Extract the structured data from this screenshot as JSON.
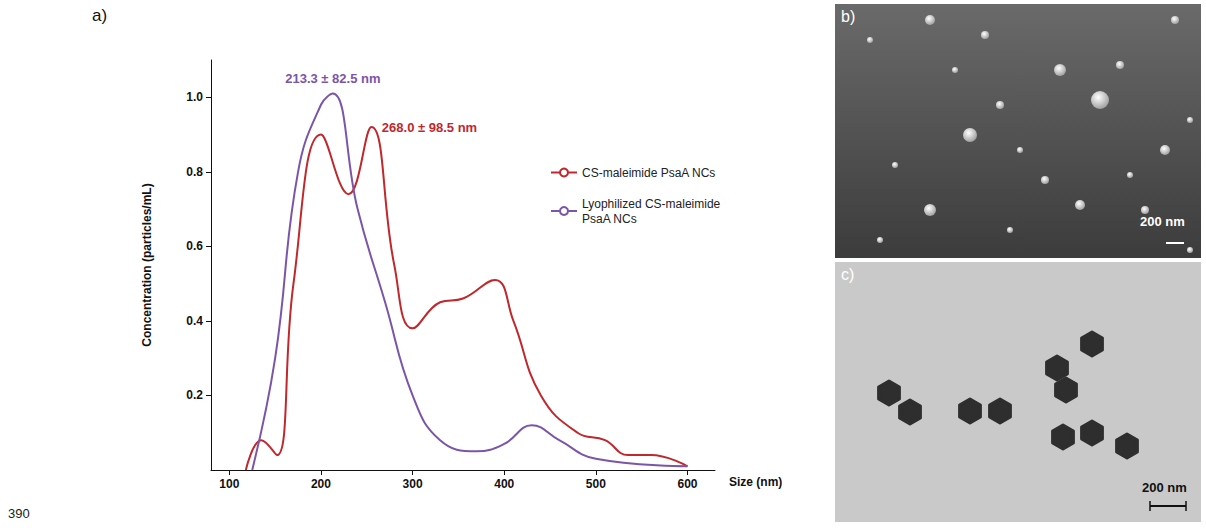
{
  "chart_data": {
    "type": "line",
    "xlabel": "Size (nm)",
    "ylabel": "Concentration (particles/mL)",
    "xlim": [
      80,
      630
    ],
    "xticks": [
      100,
      200,
      300,
      400,
      500,
      600
    ],
    "ylim": [
      0,
      1.1
    ],
    "yticks": [
      0.2,
      0.4,
      0.6,
      0.8,
      {
        "value": 1,
        "label": "1.0"
      }
    ],
    "grid": false,
    "legend": "right",
    "series": [
      {
        "name": "CS-maleimide PsaA NCs",
        "color": "#c0282d",
        "annotation": "268.0 ± 98.5 nm",
        "x": [
          118,
          135,
          152,
          170,
          200,
          230,
          255,
          280,
          300,
          330,
          355,
          390,
          410,
          440,
          480,
          510,
          535,
          560,
          600
        ],
        "values": [
          0,
          0.08,
          0.04,
          0.5,
          0.9,
          0.74,
          0.92,
          0.55,
          0.38,
          0.45,
          0.46,
          0.51,
          0.4,
          0.2,
          0.1,
          0.08,
          0.04,
          0.04,
          0.01
        ]
      },
      {
        "name": "Lyophilized CS-maleimide PsaA NCs",
        "color": "#7b55a8",
        "annotation": "213.3 ± 82.5 nm",
        "x": [
          125,
          150,
          175,
          200,
          213,
          240,
          270,
          300,
          330,
          370,
          400,
          430,
          460,
          500,
          600
        ],
        "values": [
          0,
          0.3,
          0.8,
          0.98,
          1.01,
          0.7,
          0.45,
          0.2,
          0.08,
          0.05,
          0.07,
          0.12,
          0.08,
          0.03,
          0.01
        ]
      }
    ]
  },
  "figure": {
    "line_number": "390",
    "panels": [
      {
        "label": "a)"
      },
      {
        "label": "b)",
        "scale_bar": "200 nm"
      },
      {
        "label": "c)",
        "scale_bar": "200 nm"
      }
    ]
  }
}
